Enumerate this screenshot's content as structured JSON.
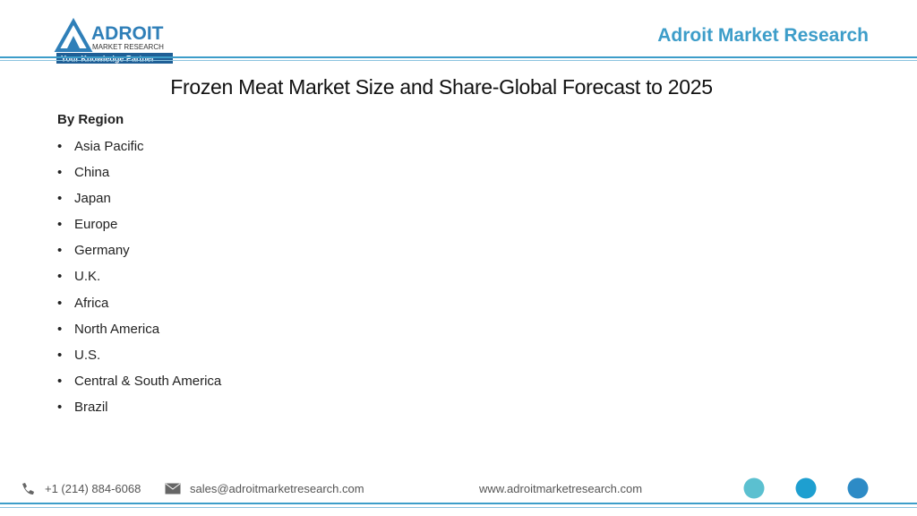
{
  "logo": {
    "name": "ADROIT",
    "sub": "MARKET RESEARCH",
    "tagline": "Your Knowledge Partner"
  },
  "header": {
    "brand": "Adroit Market Research"
  },
  "title": "Frozen Meat Market Size and Share-Global Forecast to 2025",
  "section": {
    "heading": "By Region",
    "items": [
      "Asia Pacific",
      "China",
      "Japan",
      "Europe",
      "Germany",
      "U.K.",
      "Africa",
      "North America",
      "U.S.",
      "Central & South America",
      "Brazil"
    ]
  },
  "footer": {
    "phone": "+1 (214) 884-6068",
    "email": "sales@adroitmarketresearch.com",
    "website": "www.adroitmarketresearch.com"
  }
}
